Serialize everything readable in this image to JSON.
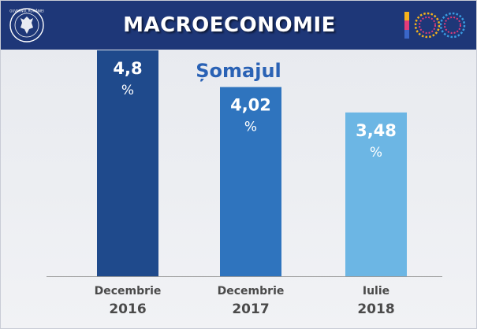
{
  "header": {
    "title": "MACROECONOMIE",
    "left_logo_icon": "guvernul-romaniei-seal-icon",
    "left_logo_text": "GUVERNUL ROMÂNIEI",
    "right_logo_icon": "romania-100-centenary-icon",
    "right_logo_text": "100"
  },
  "colors": {
    "header_bg": "#1e3778",
    "title": "#2a62b5",
    "bars": [
      "#1f4a8c",
      "#2f74be",
      "#6cb6e4"
    ],
    "axis": "#9a9a9a",
    "label": "#4a4a4a"
  },
  "chart_data": {
    "type": "bar",
    "title": "Șomajul",
    "categories": [
      [
        "Decembrie",
        "2016"
      ],
      [
        "Decembrie",
        "2017"
      ],
      [
        "Iulie",
        "2018"
      ]
    ],
    "values": [
      4.8,
      4.02,
      3.48
    ],
    "value_labels": [
      "4,8",
      "4,02",
      "3,48"
    ],
    "unit": "%",
    "ylim": [
      0,
      5
    ],
    "grid": false,
    "legend": "none"
  }
}
